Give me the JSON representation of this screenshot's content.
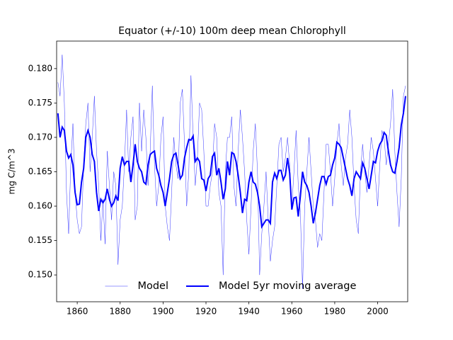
{
  "chart_data": {
    "type": "line",
    "title": "Equator (+/-10) 100m deep mean Chlorophyll",
    "y_label": "mg C/m^3",
    "x": [
      1851,
      1852,
      1853,
      1854,
      1855,
      1856,
      1857,
      1858,
      1859,
      1860,
      1861,
      1862,
      1863,
      1864,
      1865,
      1866,
      1867,
      1868,
      1869,
      1870,
      1871,
      1872,
      1873,
      1874,
      1875,
      1876,
      1877,
      1878,
      1879,
      1880,
      1881,
      1882,
      1883,
      1884,
      1885,
      1886,
      1887,
      1888,
      1889,
      1890,
      1891,
      1892,
      1893,
      1894,
      1895,
      1896,
      1897,
      1898,
      1899,
      1900,
      1901,
      1902,
      1903,
      1904,
      1905,
      1906,
      1907,
      1908,
      1909,
      1910,
      1911,
      1912,
      1913,
      1914,
      1915,
      1916,
      1917,
      1918,
      1919,
      1920,
      1921,
      1922,
      1923,
      1924,
      1925,
      1926,
      1927,
      1928,
      1929,
      1930,
      1931,
      1932,
      1933,
      1934,
      1935,
      1936,
      1937,
      1938,
      1939,
      1940,
      1941,
      1942,
      1943,
      1944,
      1945,
      1946,
      1947,
      1948,
      1949,
      1950,
      1951,
      1952,
      1953,
      1954,
      1955,
      1956,
      1957,
      1958,
      1959,
      1960,
      1961,
      1962,
      1963,
      1964,
      1965,
      1966,
      1967,
      1968,
      1969,
      1970,
      1971,
      1972,
      1973,
      1974,
      1975,
      1976,
      1977,
      1978,
      1979,
      1980,
      1981,
      1982,
      1983,
      1984,
      1985,
      1986,
      1987,
      1988,
      1989,
      1990,
      1991,
      1992,
      1993,
      1994,
      1995,
      1996,
      1997,
      1998,
      1999,
      2000,
      2001,
      2002,
      2003,
      2004,
      2005,
      2006,
      2007,
      2008,
      2009,
      2010,
      2011,
      2012,
      2013
    ],
    "series": [
      {
        "name": "Model",
        "color": "#0000ff",
        "width": 0.4,
        "values": [
          0.178,
          0.176,
          0.182,
          0.175,
          0.162,
          0.156,
          0.166,
          0.172,
          0.162,
          0.158,
          0.156,
          0.157,
          0.166,
          0.172,
          0.175,
          0.165,
          0.17,
          0.176,
          0.168,
          0.163,
          0.155,
          0.161,
          0.1545,
          0.168,
          0.163,
          0.158,
          0.165,
          0.163,
          0.1515,
          0.158,
          0.16,
          0.166,
          0.174,
          0.165,
          0.17,
          0.173,
          0.158,
          0.16,
          0.175,
          0.168,
          0.174,
          0.17,
          0.163,
          0.168,
          0.1775,
          0.166,
          0.16,
          0.163,
          0.17,
          0.173,
          0.16,
          0.157,
          0.155,
          0.162,
          0.17,
          0.166,
          0.164,
          0.175,
          0.177,
          0.169,
          0.16,
          0.165,
          0.179,
          0.17,
          0.163,
          0.167,
          0.175,
          0.174,
          0.168,
          0.16,
          0.16,
          0.163,
          0.165,
          0.172,
          0.17,
          0.162,
          0.16,
          0.15,
          0.165,
          0.17,
          0.17,
          0.173,
          0.163,
          0.16,
          0.168,
          0.174,
          0.17,
          0.165,
          0.158,
          0.153,
          0.16,
          0.168,
          0.172,
          0.165,
          0.15,
          0.156,
          0.16,
          0.165,
          0.158,
          0.152,
          0.155,
          0.157,
          0.163,
          0.169,
          0.17,
          0.165,
          0.167,
          0.17,
          0.166,
          0.16,
          0.165,
          0.171,
          0.163,
          0.159,
          0.148,
          0.16,
          0.165,
          0.17,
          0.165,
          0.16,
          0.158,
          0.154,
          0.156,
          0.155,
          0.162,
          0.169,
          0.169,
          0.165,
          0.16,
          0.164,
          0.169,
          0.172,
          0.166,
          0.163,
          0.167,
          0.169,
          0.174,
          0.17,
          0.163,
          0.158,
          0.156,
          0.165,
          0.169,
          0.165,
          0.162,
          0.166,
          0.17,
          0.168,
          0.164,
          0.16,
          0.166,
          0.171,
          0.17,
          0.166,
          0.169,
          0.172,
          0.177,
          0.168,
          0.162,
          0.157,
          0.164,
          0.176,
          0.1775
        ]
      },
      {
        "name": "Model 5yr moving average",
        "color": "#0000ff",
        "width": 2,
        "values": [
          0.1735,
          0.17,
          0.1715,
          0.171,
          0.168,
          0.167,
          0.1675,
          0.166,
          0.162,
          0.1602,
          0.1603,
          0.1635,
          0.1655,
          0.17,
          0.171,
          0.17,
          0.1675,
          0.1665,
          0.162,
          0.1593,
          0.161,
          0.1605,
          0.161,
          0.1625,
          0.161,
          0.16,
          0.1605,
          0.1615,
          0.1608,
          0.1655,
          0.1672,
          0.166,
          0.1665,
          0.1665,
          0.1635,
          0.166,
          0.169,
          0.1665,
          0.1655,
          0.165,
          0.1635,
          0.1632,
          0.166,
          0.1675,
          0.1678,
          0.168,
          0.1655,
          0.1645,
          0.163,
          0.162,
          0.16,
          0.162,
          0.164,
          0.1665,
          0.1675,
          0.1677,
          0.166,
          0.164,
          0.1645,
          0.167,
          0.1685,
          0.1697,
          0.1696,
          0.1702,
          0.1665,
          0.167,
          0.1665,
          0.164,
          0.1638,
          0.1622,
          0.164,
          0.1645,
          0.1672,
          0.1677,
          0.1645,
          0.1655,
          0.1635,
          0.161,
          0.1625,
          0.1665,
          0.1645,
          0.1678,
          0.1676,
          0.1665,
          0.1645,
          0.162,
          0.159,
          0.161,
          0.1608,
          0.1635,
          0.165,
          0.1635,
          0.1632,
          0.162,
          0.16,
          0.157,
          0.1575,
          0.158,
          0.158,
          0.1575,
          0.1635,
          0.1648,
          0.164,
          0.1652,
          0.1652,
          0.1638,
          0.1645,
          0.167,
          0.1648,
          0.1595,
          0.1612,
          0.1613,
          0.1585,
          0.1615,
          0.165,
          0.1635,
          0.163,
          0.162,
          0.16,
          0.1575,
          0.159,
          0.161,
          0.163,
          0.1643,
          0.1643,
          0.1632,
          0.1643,
          0.1645,
          0.166,
          0.167,
          0.1693,
          0.169,
          0.1685,
          0.167,
          0.1655,
          0.164,
          0.163,
          0.1615,
          0.164,
          0.165,
          0.1645,
          0.164,
          0.1663,
          0.1655,
          0.164,
          0.1625,
          0.1645,
          0.1665,
          0.1663,
          0.168,
          0.169,
          0.1695,
          0.1707,
          0.1703,
          0.168,
          0.166,
          0.165,
          0.1648,
          0.1665,
          0.1685,
          0.1718,
          0.1735,
          0.176
        ]
      }
    ],
    "xlim": [
      1850.4,
      2014
    ],
    "xticks": [
      1860,
      1880,
      1900,
      1920,
      1940,
      1960,
      1980,
      2000
    ],
    "ylim": [
      0.1461,
      0.184
    ],
    "yticks": [
      {
        "value": 0.15,
        "label": "0.150"
      },
      0.155,
      {
        "value": 0.16,
        "label": "0.160"
      },
      0.165,
      {
        "value": 0.17,
        "label": "0.170"
      },
      0.175,
      {
        "value": 0.18,
        "label": "0.180"
      }
    ],
    "legend": "lower center"
  }
}
